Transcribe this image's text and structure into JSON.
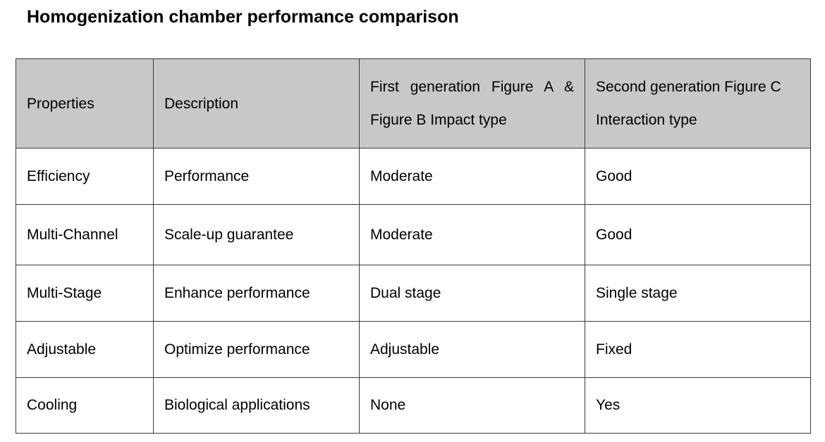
{
  "header": {
    "title": "Homogenization chamber performance comparison"
  },
  "table": {
    "columns": [
      "Properties",
      "Description",
      "First generation Figure A & Figure B Impact type",
      "Second generation Figure C Interaction type"
    ],
    "rows": [
      [
        "Efficiency",
        "Performance",
        "Moderate",
        "Good"
      ],
      [
        "Multi-Channel",
        "Scale-up guarantee",
        "Moderate",
        "Good"
      ],
      [
        "Multi-Stage",
        "Enhance performance",
        "Dual stage",
        "Single stage"
      ],
      [
        "Adjustable",
        "Optimize performance",
        "Adjustable",
        "Fixed"
      ],
      [
        "Cooling",
        "Biological applications",
        "None",
        "Yes"
      ]
    ]
  }
}
